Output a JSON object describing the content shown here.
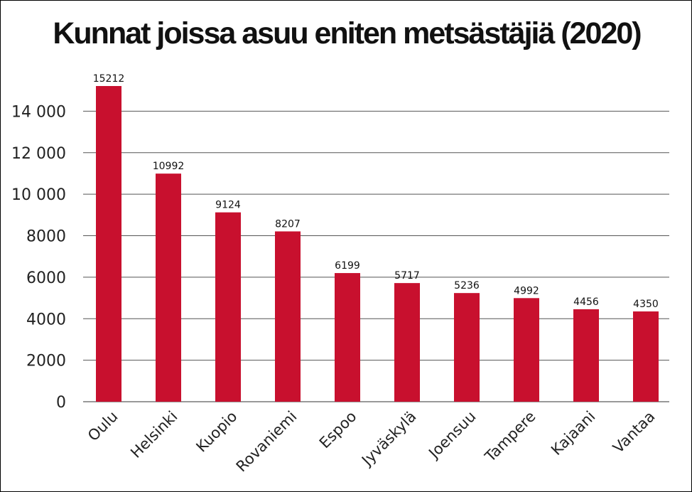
{
  "chart_data": {
    "type": "bar",
    "title": "Kunnat joissa asuu eniten metsästäjiä (2020)",
    "categories": [
      "Oulu",
      "Helsinki",
      "Kuopio",
      "Rovaniemi",
      "Espoo",
      "Jyväskylä",
      "Joensuu",
      "Tampere",
      "Kajaani",
      "Vantaa"
    ],
    "values": [
      15212,
      10992,
      9124,
      8207,
      6199,
      5717,
      5236,
      4992,
      4456,
      4350
    ],
    "data_labels": [
      "15212",
      "10992",
      "9124",
      "8207",
      "6199",
      "5717",
      "5236",
      "4992",
      "4456",
      "4350"
    ],
    "yticks": [
      0,
      2000,
      4000,
      6000,
      8000,
      10000,
      12000,
      14000
    ],
    "ytick_labels": [
      "0",
      "2000",
      "4000",
      "6000",
      "8000",
      "10 000",
      "12 000",
      "14 000"
    ],
    "ylim": [
      0,
      15212
    ],
    "grid": true,
    "bar_color": "#c8102e",
    "xlabel": "",
    "ylabel": ""
  }
}
